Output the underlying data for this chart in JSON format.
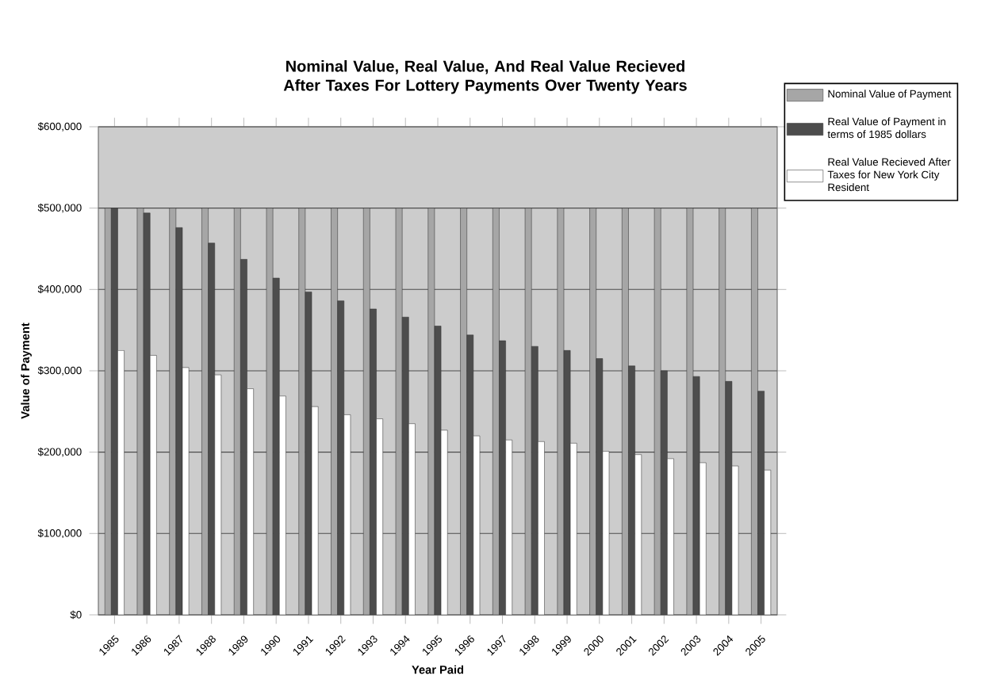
{
  "chart_data": {
    "type": "bar",
    "title": "Nominal Value, Real Value, And Real Value Recieved After Taxes For Lottery Payments Over Twenty Years",
    "xlabel": "Year Paid",
    "ylabel": "Value of Payment",
    "categories": [
      "1985",
      "1986",
      "1987",
      "1988",
      "1989",
      "1990",
      "1991",
      "1992",
      "1993",
      "1994",
      "1995",
      "1996",
      "1997",
      "1998",
      "1999",
      "2000",
      "2001",
      "2002",
      "2003",
      "2004",
      "2005"
    ],
    "series": [
      {
        "name": "Nominal Value of Payment",
        "color": "#a6a6a6",
        "values": [
          500000,
          500000,
          500000,
          500000,
          500000,
          500000,
          500000,
          500000,
          500000,
          500000,
          500000,
          500000,
          500000,
          500000,
          500000,
          500000,
          500000,
          500000,
          500000,
          500000,
          500000
        ]
      },
      {
        "name": "Real Value of Payment in terms of 1985 dollars",
        "color": "#4d4d4d",
        "values": [
          500000,
          494000,
          476000,
          457000,
          437000,
          414000,
          397000,
          386000,
          376000,
          366000,
          355000,
          344000,
          337000,
          330000,
          325000,
          315000,
          306000,
          300000,
          293000,
          287000,
          275000
        ]
      },
      {
        "name": "Real Value Recieved After Taxes for New York City Resident",
        "color": "#ffffff",
        "values": [
          325000,
          319000,
          304000,
          295000,
          278000,
          269000,
          256000,
          246000,
          241000,
          235000,
          227000,
          220000,
          215000,
          213000,
          211000,
          201000,
          197000,
          192000,
          187000,
          183000,
          178000
        ]
      }
    ],
    "ylim": [
      0,
      600000
    ],
    "yticks": [
      {
        "value": 0,
        "label": "$0"
      },
      {
        "value": 100000,
        "label": "$100,000"
      },
      {
        "value": 200000,
        "label": "$200,000"
      },
      {
        "value": 300000,
        "label": "$300,000"
      },
      {
        "value": 400000,
        "label": "$400,000"
      },
      {
        "value": 500000,
        "label": "$500,000"
      },
      {
        "value": 600000,
        "label": "$600,000"
      }
    ],
    "grid": "y",
    "legend": "top right"
  }
}
